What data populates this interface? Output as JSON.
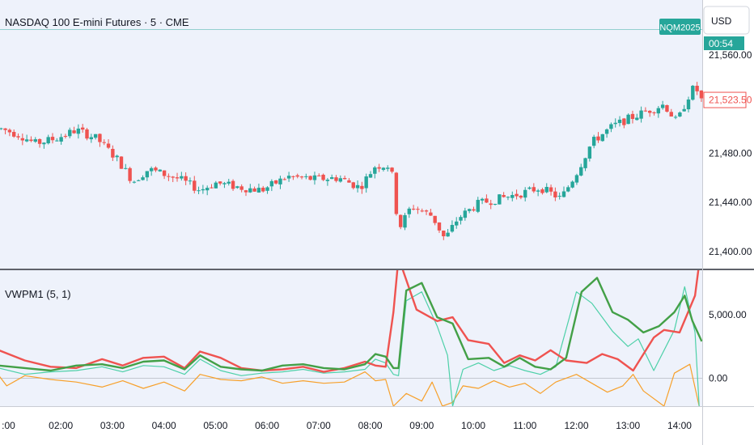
{
  "header": {
    "symbol_title": "NASDAQ 100 E-mini Futures · 5 · CME",
    "currency_button": "USD",
    "contract_badge": "NQM2025",
    "countdown": "00:54",
    "last_price_label": "21,523.50"
  },
  "indicator": {
    "label": "VWPM1 (5, 1)"
  },
  "colors": {
    "background": "#eef2fb",
    "up_candle": "#26a69a",
    "down_candle": "#ef5350",
    "price_line": "#26a69a",
    "series_red": "#ef5350",
    "series_green": "#43a047",
    "series_teal": "#4dd0a8",
    "series_orange": "#f7a02a"
  },
  "chart_data": [
    {
      "type": "candlestick",
      "title": "NASDAQ 100 E-mini Futures · 5 · CME",
      "price_axis_ticks": [
        "21,560.00",
        "21,480.00",
        "21,440.00",
        "21,400.00"
      ],
      "price_axis_values": [
        21560,
        21480,
        21440,
        21400
      ],
      "ylim": [
        21386,
        21605
      ],
      "xlim_hours": [
        0.82,
        14.44
      ],
      "time_axis_ticks": [
        "02:00",
        "03:00",
        "04:00",
        "05:00",
        "06:00",
        "07:00",
        "08:00",
        "09:00",
        "10:00",
        "11:00",
        "12:00",
        "13:00",
        "14:00"
      ],
      "partial_first_tick": ":00",
      "last_price": 21523.5,
      "grid": false,
      "close_anchors": [
        [
          0.85,
          21500
        ],
        [
          1.2,
          21495
        ],
        [
          1.5,
          21488
        ],
        [
          1.9,
          21492
        ],
        [
          2.3,
          21499
        ],
        [
          2.7,
          21492
        ],
        [
          3.1,
          21475
        ],
        [
          3.4,
          21457
        ],
        [
          3.7,
          21467
        ],
        [
          4.3,
          21459
        ],
        [
          4.7,
          21450
        ],
        [
          5.0,
          21456
        ],
        [
          5.5,
          21452
        ],
        [
          5.9,
          21450
        ],
        [
          6.4,
          21461
        ],
        [
          6.9,
          21459
        ],
        [
          7.4,
          21460
        ],
        [
          7.8,
          21452
        ],
        [
          8.1,
          21470
        ],
        [
          8.4,
          21470
        ],
        [
          8.55,
          21418
        ],
        [
          8.8,
          21437
        ],
        [
          9.2,
          21429
        ],
        [
          9.45,
          21410
        ],
        [
          9.7,
          21427
        ],
        [
          10.1,
          21439
        ],
        [
          10.5,
          21443
        ],
        [
          10.9,
          21447
        ],
        [
          11.3,
          21452
        ],
        [
          11.7,
          21443
        ],
        [
          12.0,
          21464
        ],
        [
          12.3,
          21489
        ],
        [
          12.7,
          21502
        ],
        [
          13.0,
          21508
        ],
        [
          13.4,
          21515
        ],
        [
          13.7,
          21520
        ],
        [
          13.95,
          21505
        ],
        [
          14.15,
          21525
        ],
        [
          14.3,
          21535
        ],
        [
          14.42,
          21523.5
        ]
      ]
    },
    {
      "type": "line",
      "title": "VWPM1 (5, 1)",
      "axis_ticks": [
        "5,000.00",
        "0.00"
      ],
      "axis_values": [
        5000,
        0
      ],
      "ylim": [
        -2200,
        8500
      ],
      "series": [
        {
          "color": "#ef5350",
          "points": [
            [
              0.8,
              2200
            ],
            [
              1.3,
              1400
            ],
            [
              1.8,
              900
            ],
            [
              2.3,
              800
            ],
            [
              2.8,
              1500
            ],
            [
              3.2,
              1000
            ],
            [
              3.6,
              1600
            ],
            [
              4.0,
              1700
            ],
            [
              4.4,
              800
            ],
            [
              4.7,
              2100
            ],
            [
              5.1,
              1600
            ],
            [
              5.5,
              800
            ],
            [
              5.9,
              600
            ],
            [
              6.3,
              700
            ],
            [
              6.7,
              900
            ],
            [
              7.1,
              500
            ],
            [
              7.5,
              800
            ],
            [
              7.9,
              1300
            ],
            [
              8.1,
              1000
            ],
            [
              8.3,
              900
            ],
            [
              8.45,
              5200
            ],
            [
              8.55,
              9500
            ],
            [
              8.9,
              5400
            ],
            [
              9.3,
              4500
            ],
            [
              9.6,
              4800
            ],
            [
              9.9,
              3000
            ],
            [
              10.3,
              2700
            ],
            [
              10.6,
              1200
            ],
            [
              10.9,
              1800
            ],
            [
              11.2,
              1400
            ],
            [
              11.5,
              2200
            ],
            [
              11.8,
              1400
            ],
            [
              12.2,
              1200
            ],
            [
              12.5,
              1900
            ],
            [
              12.8,
              1500
            ],
            [
              13.1,
              600
            ],
            [
              13.5,
              3200
            ],
            [
              13.7,
              3800
            ],
            [
              14.0,
              3600
            ],
            [
              14.3,
              6500
            ],
            [
              14.38,
              9000
            ]
          ]
        },
        {
          "color": "#43a047",
          "points": [
            [
              0.8,
              1000
            ],
            [
              1.3,
              800
            ],
            [
              1.8,
              600
            ],
            [
              2.3,
              1000
            ],
            [
              2.8,
              1100
            ],
            [
              3.2,
              800
            ],
            [
              3.6,
              1300
            ],
            [
              4.0,
              1400
            ],
            [
              4.4,
              700
            ],
            [
              4.7,
              1800
            ],
            [
              5.1,
              900
            ],
            [
              5.5,
              700
            ],
            [
              5.9,
              600
            ],
            [
              6.3,
              1000
            ],
            [
              6.7,
              1100
            ],
            [
              7.1,
              800
            ],
            [
              7.5,
              700
            ],
            [
              7.9,
              1100
            ],
            [
              8.1,
              1900
            ],
            [
              8.3,
              1700
            ],
            [
              8.45,
              800
            ],
            [
              8.55,
              800
            ],
            [
              8.7,
              6900
            ],
            [
              9.0,
              7500
            ],
            [
              9.3,
              4800
            ],
            [
              9.6,
              4300
            ],
            [
              9.9,
              1500
            ],
            [
              10.3,
              1600
            ],
            [
              10.6,
              900
            ],
            [
              10.9,
              1600
            ],
            [
              11.2,
              900
            ],
            [
              11.5,
              700
            ],
            [
              11.8,
              1600
            ],
            [
              12.1,
              6800
            ],
            [
              12.4,
              7900
            ],
            [
              12.7,
              5200
            ],
            [
              13.0,
              4600
            ],
            [
              13.3,
              3600
            ],
            [
              13.6,
              4100
            ],
            [
              13.9,
              5200
            ],
            [
              14.1,
              6500
            ],
            [
              14.25,
              4500
            ],
            [
              14.43,
              2900
            ]
          ]
        },
        {
          "color": "#4dd0a8",
          "points": [
            [
              0.8,
              800
            ],
            [
              1.3,
              300
            ],
            [
              1.8,
              500
            ],
            [
              2.3,
              600
            ],
            [
              2.8,
              900
            ],
            [
              3.2,
              500
            ],
            [
              3.6,
              1000
            ],
            [
              4.0,
              900
            ],
            [
              4.4,
              300
            ],
            [
              4.7,
              1500
            ],
            [
              5.1,
              600
            ],
            [
              5.5,
              200
            ],
            [
              5.9,
              400
            ],
            [
              6.3,
              500
            ],
            [
              6.7,
              700
            ],
            [
              7.1,
              400
            ],
            [
              7.5,
              500
            ],
            [
              7.9,
              700
            ],
            [
              8.1,
              1500
            ],
            [
              8.3,
              1200
            ],
            [
              8.45,
              300
            ],
            [
              8.55,
              200
            ],
            [
              8.7,
              6100
            ],
            [
              9.0,
              6800
            ],
            [
              9.3,
              4100
            ],
            [
              9.5,
              1800
            ],
            [
              9.6,
              -2200
            ],
            [
              9.8,
              700
            ],
            [
              10.1,
              1200
            ],
            [
              10.4,
              600
            ],
            [
              10.7,
              1000
            ],
            [
              11.0,
              600
            ],
            [
              11.3,
              300
            ],
            [
              11.6,
              900
            ],
            [
              12.0,
              6800
            ],
            [
              12.3,
              5900
            ],
            [
              12.7,
              3700
            ],
            [
              13.0,
              2500
            ],
            [
              13.2,
              3100
            ],
            [
              13.5,
              600
            ],
            [
              13.9,
              3800
            ],
            [
              14.1,
              7200
            ],
            [
              14.3,
              3600
            ],
            [
              14.38,
              -2200
            ]
          ]
        },
        {
          "color": "#f7a02a",
          "points": [
            [
              0.8,
              200
            ],
            [
              0.95,
              -600
            ],
            [
              1.3,
              200
            ],
            [
              1.8,
              -100
            ],
            [
              2.3,
              -300
            ],
            [
              2.8,
              -700
            ],
            [
              3.2,
              -200
            ],
            [
              3.6,
              -800
            ],
            [
              4.0,
              -300
            ],
            [
              4.4,
              -1000
            ],
            [
              4.7,
              300
            ],
            [
              5.1,
              -100
            ],
            [
              5.5,
              -200
            ],
            [
              5.9,
              100
            ],
            [
              6.3,
              -400
            ],
            [
              6.7,
              -200
            ],
            [
              7.1,
              -400
            ],
            [
              7.5,
              -300
            ],
            [
              7.9,
              500
            ],
            [
              8.1,
              -200
            ],
            [
              8.3,
              -100
            ],
            [
              8.45,
              -2200
            ],
            [
              8.7,
              -1200
            ],
            [
              9.0,
              -1800
            ],
            [
              9.2,
              -300
            ],
            [
              9.4,
              -2200
            ],
            [
              9.6,
              -1900
            ],
            [
              9.8,
              -600
            ],
            [
              10.1,
              -800
            ],
            [
              10.4,
              -200
            ],
            [
              10.7,
              -700
            ],
            [
              11.0,
              -400
            ],
            [
              11.3,
              -1200
            ],
            [
              11.6,
              -300
            ],
            [
              12.0,
              300
            ],
            [
              12.3,
              -400
            ],
            [
              12.6,
              -1100
            ],
            [
              12.9,
              -600
            ],
            [
              13.1,
              300
            ],
            [
              13.3,
              -1000
            ],
            [
              13.7,
              -2200
            ],
            [
              13.9,
              400
            ],
            [
              14.2,
              1100
            ],
            [
              14.38,
              -2200
            ]
          ]
        }
      ]
    }
  ]
}
